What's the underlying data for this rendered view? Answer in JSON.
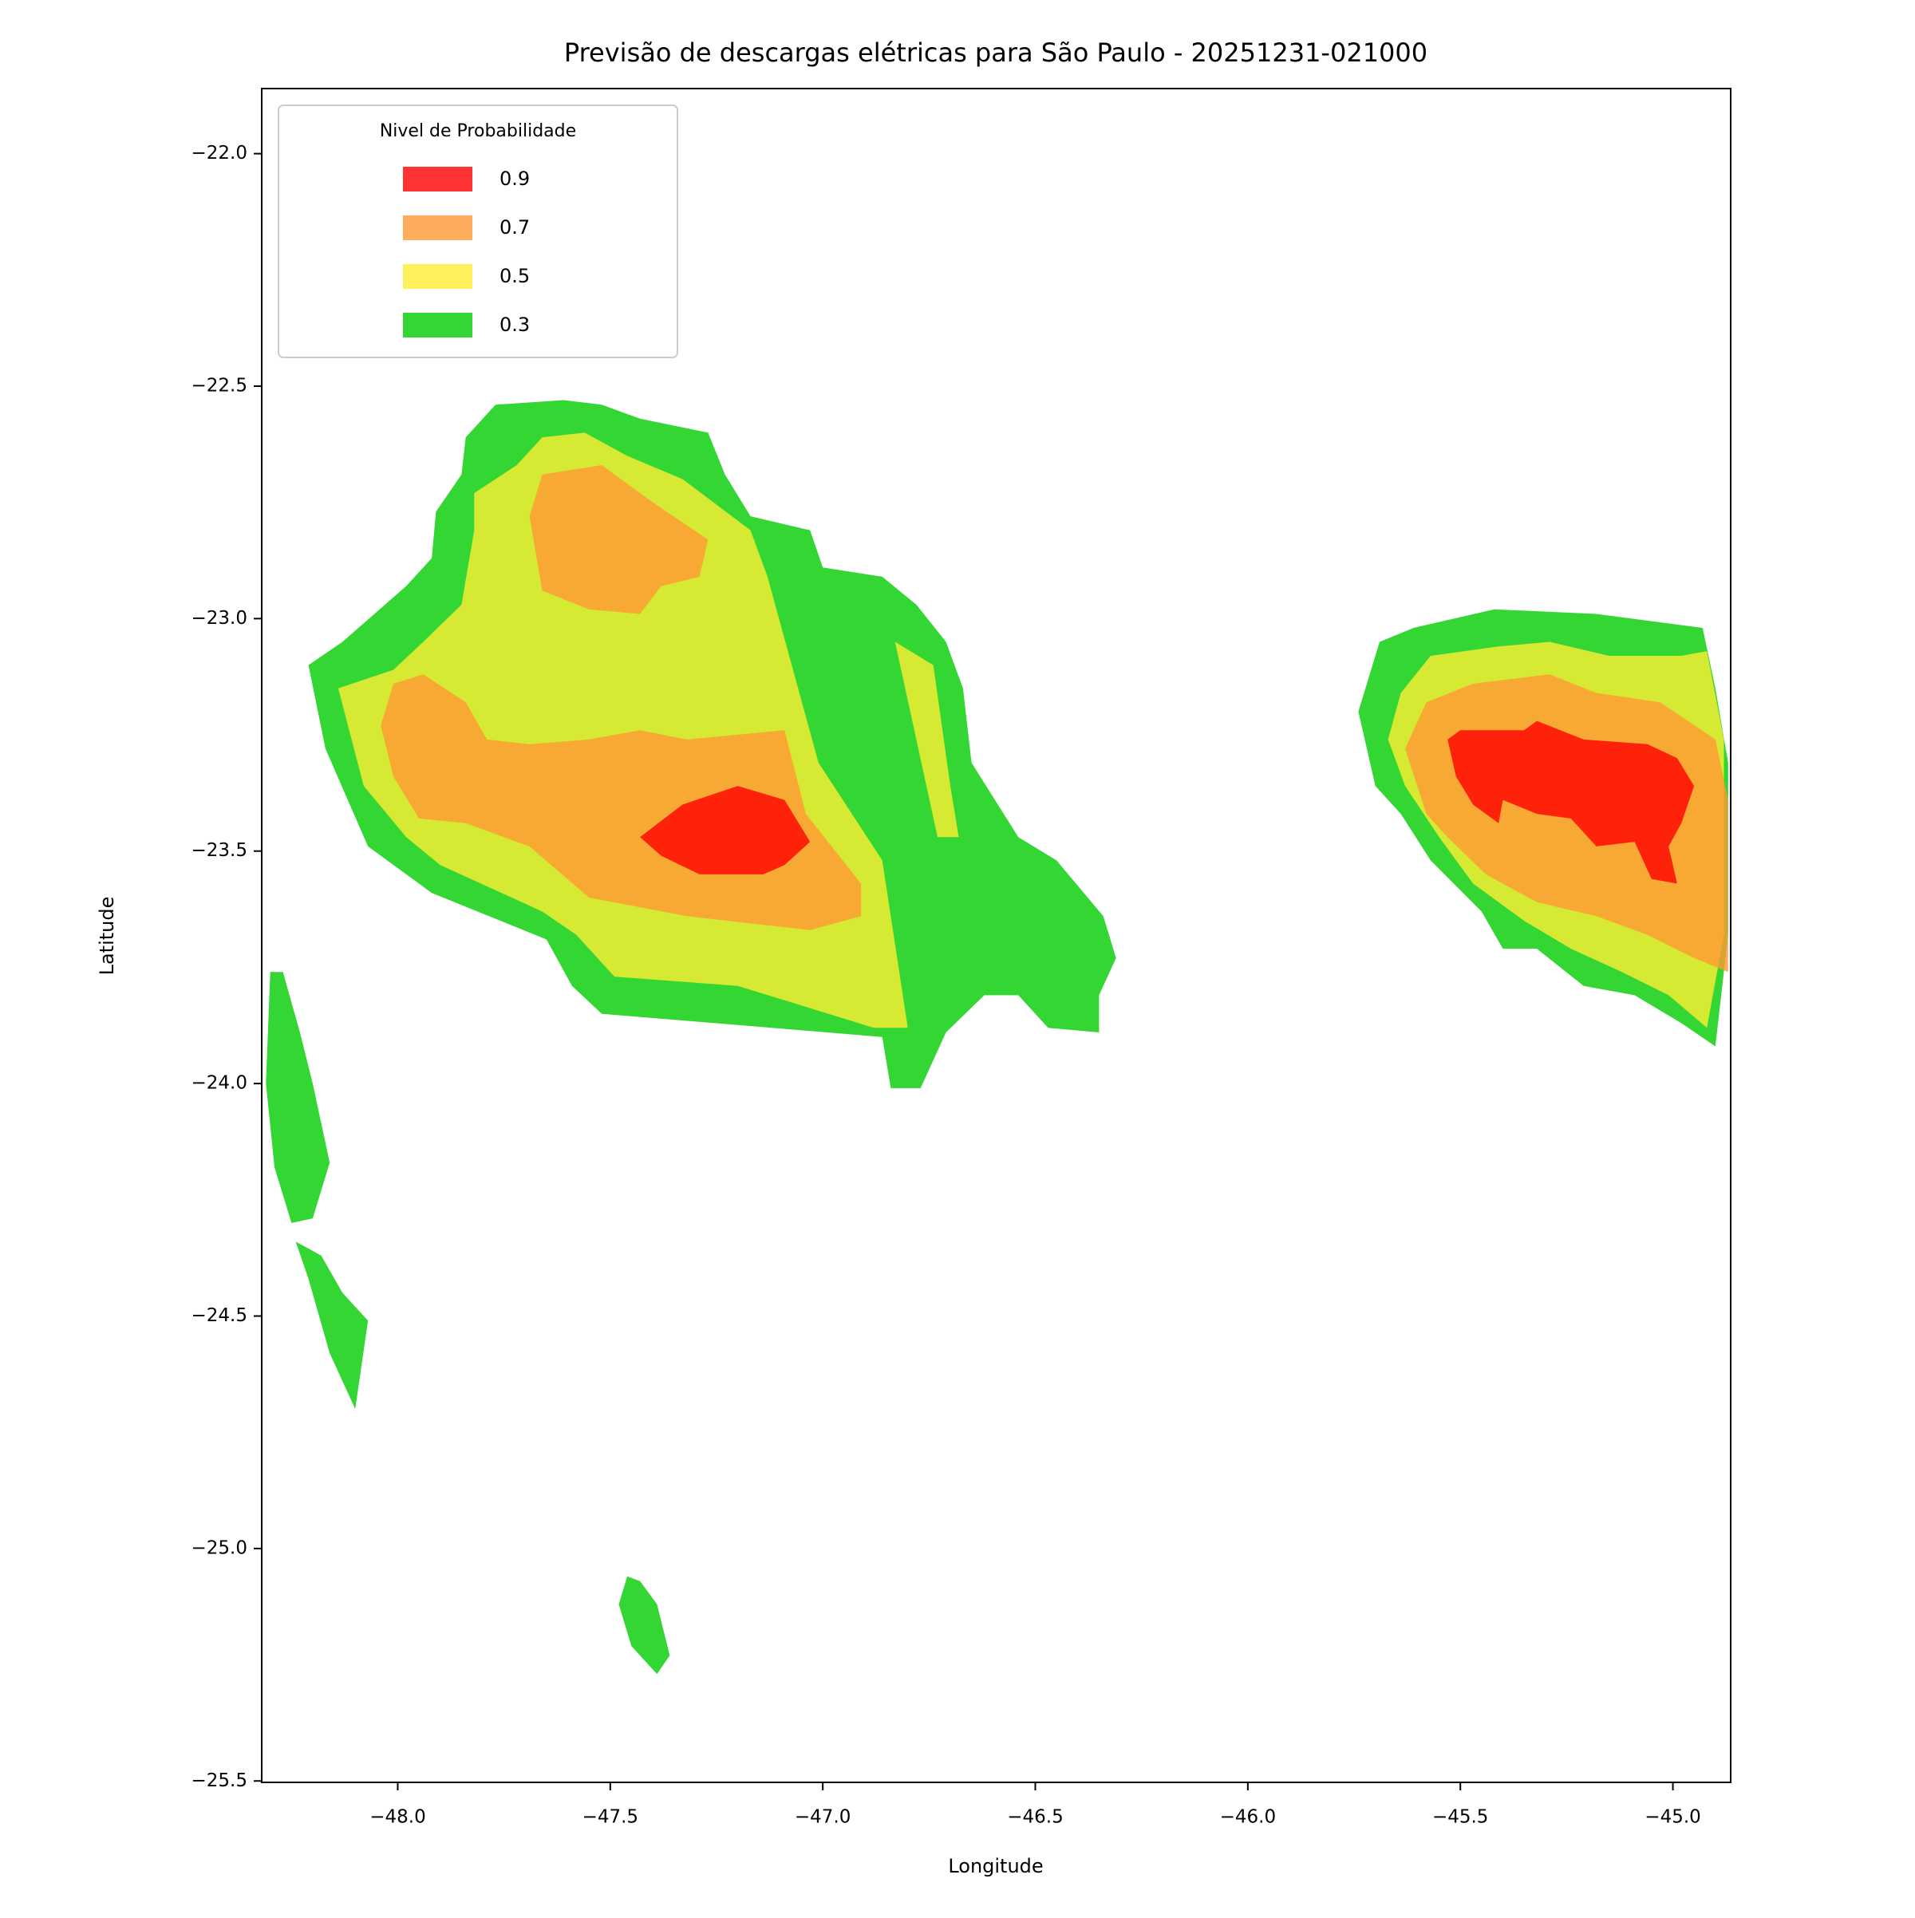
{
  "chart_data": {
    "type": "contourf",
    "title": "Previsão de descargas elétricas para São Paulo - 20251231-021000",
    "xlabel": "Longitude",
    "ylabel": "Latitude",
    "xlim": [
      -48.32,
      -44.864
    ],
    "ylim": [
      -25.503,
      -21.86
    ],
    "xticks": [
      {
        "value": -48,
        "label": "−48.0"
      },
      {
        "value": -47.5,
        "label": "−47.5"
      },
      {
        "value": -47,
        "label": "−47.0"
      },
      {
        "value": -46.5,
        "label": "−46.5"
      },
      {
        "value": -46,
        "label": "−46.0"
      },
      {
        "value": -45.5,
        "label": "−45.5"
      },
      {
        "value": -45,
        "label": "−45.0"
      }
    ],
    "yticks": [
      {
        "value": -22,
        "label": "−22.0"
      },
      {
        "value": -22.5,
        "label": "−22.5"
      },
      {
        "value": -23,
        "label": "−23.0"
      },
      {
        "value": -23.5,
        "label": "−23.5"
      },
      {
        "value": -24,
        "label": "−24.0"
      },
      {
        "value": -24.5,
        "label": "−24.5"
      },
      {
        "value": -25,
        "label": "−25.0"
      },
      {
        "value": -25.5,
        "label": "−25.5"
      }
    ],
    "legend": {
      "title": "Nivel de Probabilidade",
      "loc": "upper left"
    },
    "alpha": 0.8,
    "series": [
      {
        "name": "0.9",
        "color": "#ff0000",
        "regions": [
          {
            "x": [
              -47.43,
              -47.33,
              -47.2,
              -47.09,
              -47.03,
              -47.09,
              -47.14,
              -47.29,
              -47.38
            ],
            "y": [
              -23.47,
              -23.4,
              -23.36,
              -23.39,
              -23.48,
              -23.53,
              -23.55,
              -23.55,
              -23.51
            ]
          },
          {
            "x": [
              -45.53,
              -45.5,
              -45.35,
              -45.32,
              -45.21,
              -45.06,
              -44.99,
              -44.95,
              -44.98,
              -45.01,
              -44.99,
              -45.05,
              -45.09,
              -45.18,
              -45.24,
              -45.32,
              -45.4,
              -45.41,
              -45.47,
              -45.51
            ],
            "y": [
              -23.26,
              -23.24,
              -23.24,
              -23.22,
              -23.26,
              -23.27,
              -23.3,
              -23.36,
              -23.44,
              -23.49,
              -23.57,
              -23.56,
              -23.48,
              -23.49,
              -23.43,
              -23.42,
              -23.39,
              -23.44,
              -23.4,
              -23.34
            ]
          }
        ]
      },
      {
        "name": "0.7",
        "color": "#ff9933",
        "regions": [
          {
            "x": [
              -47.69,
              -47.66,
              -47.52,
              -47.4,
              -47.27,
              -47.29,
              -47.38,
              -47.43,
              -47.55,
              -47.66
            ],
            "y": [
              -22.78,
              -22.69,
              -22.67,
              -22.75,
              -22.83,
              -22.91,
              -22.93,
              -22.99,
              -22.98,
              -22.94
            ]
          },
          {
            "x": [
              -48.04,
              -48.01,
              -47.94,
              -47.84,
              -47.79,
              -47.69,
              -47.55,
              -47.43,
              -47.32,
              -47.09,
              -47.04,
              -46.91,
              -46.91,
              -47.03,
              -47.32,
              -47.55,
              -47.69,
              -47.84,
              -47.95,
              -48.01
            ],
            "y": [
              -23.23,
              -23.14,
              -23.12,
              -23.18,
              -23.26,
              -23.27,
              -23.26,
              -23.24,
              -23.26,
              -23.24,
              -23.42,
              -23.57,
              -23.64,
              -23.67,
              -23.64,
              -23.6,
              -23.49,
              -23.44,
              -23.43,
              -23.34
            ]
          },
          {
            "x": [
              -45.63,
              -45.58,
              -45.47,
              -45.29,
              -45.18,
              -45.03,
              -44.9,
              -44.87,
              -44.87,
              -44.95,
              -45.06,
              -45.18,
              -45.32,
              -45.44,
              -45.53,
              -45.58
            ],
            "y": [
              -23.28,
              -23.18,
              -23.14,
              -23.12,
              -23.16,
              -23.18,
              -23.26,
              -23.39,
              -23.76,
              -23.73,
              -23.68,
              -23.64,
              -23.61,
              -23.55,
              -23.47,
              -23.42
            ]
          }
        ]
      },
      {
        "name": "0.5",
        "color": "#ffee33",
        "regions": [
          {
            "x": [
              -48.14,
              -48.01,
              -47.94,
              -47.85,
              -47.82,
              -47.82,
              -47.72,
              -47.66,
              -47.56,
              -47.46,
              -47.33,
              -47.17,
              -47.13,
              -47.01,
              -46.86,
              -46.8,
              -46.88,
              -47.2,
              -47.49,
              -47.58,
              -47.66,
              -47.9,
              -47.98,
              -48.08
            ],
            "y": [
              -23.15,
              -23.11,
              -23.05,
              -22.97,
              -22.81,
              -22.73,
              -22.67,
              -22.61,
              -22.6,
              -22.65,
              -22.7,
              -22.81,
              -22.91,
              -23.31,
              -23.52,
              -23.88,
              -23.88,
              -23.79,
              -23.77,
              -23.68,
              -23.63,
              -23.53,
              -23.47,
              -23.36
            ]
          },
          {
            "x": [
              -46.83,
              -46.74,
              -46.7,
              -46.68,
              -46.73,
              -46.78
            ],
            "y": [
              -23.05,
              -23.1,
              -23.36,
              -23.47,
              -23.47,
              -23.26
            ]
          },
          {
            "x": [
              -45.67,
              -45.64,
              -45.57,
              -45.41,
              -45.29,
              -45.15,
              -44.98,
              -44.92,
              -44.88,
              -44.88,
              -44.92,
              -45.01,
              -45.12,
              -45.24,
              -45.35,
              -45.47,
              -45.55,
              -45.63
            ],
            "y": [
              -23.26,
              -23.16,
              -23.08,
              -23.06,
              -23.05,
              -23.08,
              -23.08,
              -23.07,
              -23.26,
              -23.68,
              -23.88,
              -23.81,
              -23.76,
              -23.71,
              -23.65,
              -23.57,
              -23.47,
              -23.36
            ]
          }
        ]
      },
      {
        "name": "0.3",
        "color": "#00cc00",
        "regions": [
          {
            "x": [
              -48.21,
              -48.13,
              -47.98,
              -47.92,
              -47.91,
              -47.85,
              -47.84,
              -47.77,
              -47.61,
              -47.52,
              -47.43,
              -47.27,
              -47.23,
              -47.17,
              -47.03,
              -47.0,
              -46.86,
              -46.78,
              -46.71,
              -46.67,
              -46.65,
              -46.54,
              -46.45,
              -46.34,
              -46.31,
              -46.35,
              -46.35,
              -46.47,
              -46.54,
              -46.62,
              -46.71,
              -46.77,
              -46.84,
              -46.86,
              -47.12,
              -47.52,
              -47.59,
              -47.65,
              -47.92,
              -48.07,
              -48.17
            ],
            "y": [
              -23.1,
              -23.05,
              -22.93,
              -22.87,
              -22.77,
              -22.69,
              -22.61,
              -22.54,
              -22.53,
              -22.54,
              -22.57,
              -22.6,
              -22.69,
              -22.78,
              -22.81,
              -22.89,
              -22.91,
              -22.97,
              -23.05,
              -23.15,
              -23.31,
              -23.47,
              -23.52,
              -23.64,
              -23.73,
              -23.81,
              -23.89,
              -23.88,
              -23.81,
              -23.81,
              -23.89,
              -24.01,
              -24.01,
              -23.9,
              -23.88,
              -23.85,
              -23.79,
              -23.69,
              -23.59,
              -23.49,
              -23.28
            ]
          },
          {
            "x": [
              -45.74,
              -45.69,
              -45.61,
              -45.42,
              -45.18,
              -44.93,
              -44.9,
              -44.87,
              -44.87,
              -44.9,
              -44.98,
              -45.09,
              -45.21,
              -45.32,
              -45.4,
              -45.45,
              -45.57,
              -45.64,
              -45.7
            ],
            "y": [
              -23.2,
              -23.05,
              -23.02,
              -22.98,
              -22.99,
              -23.02,
              -23.15,
              -23.31,
              -23.68,
              -23.92,
              -23.87,
              -23.81,
              -23.79,
              -23.71,
              -23.71,
              -23.63,
              -23.52,
              -23.42,
              -23.36
            ]
          },
          {
            "x": [
              -48.3,
              -48.27,
              -48.23,
              -48.2,
              -48.16,
              -48.2,
              -48.25,
              -48.29,
              -48.31
            ],
            "y": [
              -23.76,
              -23.76,
              -23.89,
              -24.0,
              -24.17,
              -24.29,
              -24.3,
              -24.18,
              -24.0
            ]
          },
          {
            "x": [
              -48.24,
              -48.18,
              -48.13,
              -48.07,
              -48.1,
              -48.16,
              -48.21
            ],
            "y": [
              -24.34,
              -24.37,
              -24.45,
              -24.51,
              -24.7,
              -24.58,
              -24.42
            ]
          },
          {
            "x": [
              -47.46,
              -47.43,
              -47.39,
              -47.36,
              -47.39,
              -47.45,
              -47.48
            ],
            "y": [
              -25.06,
              -25.07,
              -25.12,
              -25.23,
              -25.27,
              -25.21,
              -25.12
            ]
          }
        ]
      }
    ]
  }
}
